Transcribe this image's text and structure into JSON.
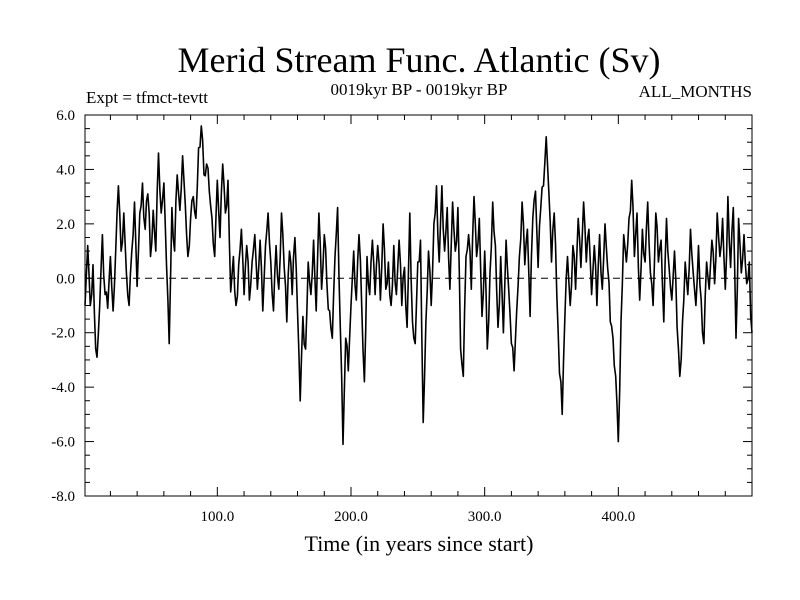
{
  "chart_data": {
    "type": "line",
    "title": "Merid Stream Func. Atlantic (Sv)",
    "experiment": "Expt = tfmct-tevtt",
    "period": "0019kyr BP - 0019kyr BP",
    "months": "ALL_MONTHS",
    "xlabel": "Time (in years since start)",
    "ylabel": "",
    "xlim": [
      1,
      500
    ],
    "ylim": [
      -8.0,
      6.0
    ],
    "xticks": [
      100,
      200,
      300,
      400
    ],
    "xtick_labels": [
      "100.0",
      "200.0",
      "300.0",
      "400.0"
    ],
    "yticks": [
      -8,
      -6,
      -4,
      -2,
      0,
      2,
      4,
      6
    ],
    "ytick_labels": [
      "-8.0",
      "-6.0",
      "-4.0",
      "-2.0",
      "0.0",
      "2.0",
      "4.0",
      "6.0"
    ],
    "zero_line": true,
    "grid": false,
    "series_color": "#000000",
    "series": [
      {
        "name": "Merid Stream Func. Atlantic",
        "x": [
          1,
          500
        ],
        "anchors": [
          [
            1,
            -1.0
          ],
          [
            3,
            1.2
          ],
          [
            5,
            -1.0
          ],
          [
            7,
            0.5
          ],
          [
            9,
            -2.6
          ],
          [
            10,
            -2.9
          ],
          [
            12,
            -1.0
          ],
          [
            14,
            1.6
          ],
          [
            16,
            -0.6
          ],
          [
            18,
            -1.1
          ],
          [
            20,
            0.8
          ],
          [
            22,
            -1.2
          ],
          [
            24,
            1.0
          ],
          [
            26,
            3.4
          ],
          [
            28,
            1.0
          ],
          [
            30,
            2.4
          ],
          [
            32,
            0.2
          ],
          [
            34,
            -1.0
          ],
          [
            36,
            1.0
          ],
          [
            38,
            2.8
          ],
          [
            40,
            -0.3
          ],
          [
            42,
            2.4
          ],
          [
            44,
            3.5
          ],
          [
            46,
            1.8
          ],
          [
            48,
            3.1
          ],
          [
            50,
            0.8
          ],
          [
            52,
            2.5
          ],
          [
            54,
            1.0
          ],
          [
            56,
            4.6
          ],
          [
            58,
            2.4
          ],
          [
            60,
            3.5
          ],
          [
            62,
            0.5
          ],
          [
            64,
            -2.4
          ],
          [
            66,
            2.6
          ],
          [
            68,
            1.0
          ],
          [
            70,
            3.8
          ],
          [
            72,
            2.5
          ],
          [
            74,
            4.5
          ],
          [
            76,
            2.7
          ],
          [
            78,
            0.8
          ],
          [
            80,
            2.2
          ],
          [
            82,
            3.0
          ],
          [
            84,
            2.2
          ],
          [
            86,
            4.8
          ],
          [
            88,
            5.6
          ],
          [
            90,
            3.8
          ],
          [
            92,
            4.2
          ],
          [
            94,
            3.2
          ],
          [
            96,
            2.2
          ],
          [
            98,
            0.8
          ],
          [
            100,
            3.6
          ],
          [
            102,
            1.5
          ],
          [
            104,
            4.2
          ],
          [
            106,
            2.4
          ],
          [
            108,
            3.6
          ],
          [
            110,
            -0.5
          ],
          [
            112,
            0.8
          ],
          [
            114,
            -1.0
          ],
          [
            116,
            0.5
          ],
          [
            118,
            1.8
          ],
          [
            120,
            -0.6
          ],
          [
            122,
            1.2
          ],
          [
            124,
            -0.8
          ],
          [
            126,
            0.6
          ],
          [
            128,
            1.6
          ],
          [
            130,
            -0.4
          ],
          [
            132,
            1.4
          ],
          [
            134,
            -1.2
          ],
          [
            136,
            1.2
          ],
          [
            138,
            2.4
          ],
          [
            140,
            0.6
          ],
          [
            142,
            -1.2
          ],
          [
            144,
            1.2
          ],
          [
            146,
            -0.4
          ],
          [
            148,
            2.4
          ],
          [
            150,
            0.4
          ],
          [
            152,
            -1.6
          ],
          [
            154,
            1.0
          ],
          [
            156,
            -0.6
          ],
          [
            158,
            1.5
          ],
          [
            160,
            -1.2
          ],
          [
            162,
            -4.5
          ],
          [
            164,
            -1.4
          ],
          [
            166,
            -2.6
          ],
          [
            168,
            0.6
          ],
          [
            170,
            -0.6
          ],
          [
            172,
            1.4
          ],
          [
            174,
            -1.2
          ],
          [
            176,
            2.4
          ],
          [
            178,
            -0.4
          ],
          [
            180,
            1.6
          ],
          [
            182,
            -0.2
          ],
          [
            184,
            -1.2
          ],
          [
            186,
            -2.2
          ],
          [
            188,
            0.8
          ],
          [
            190,
            2.6
          ],
          [
            192,
            -1.8
          ],
          [
            194,
            -6.1
          ],
          [
            196,
            -2.2
          ],
          [
            198,
            -3.4
          ],
          [
            200,
            -1.0
          ],
          [
            202,
            1.0
          ],
          [
            204,
            -0.8
          ],
          [
            206,
            1.6
          ],
          [
            208,
            -1.0
          ],
          [
            210,
            -3.8
          ],
          [
            212,
            0.8
          ],
          [
            214,
            -0.6
          ],
          [
            216,
            1.4
          ],
          [
            218,
            -0.6
          ],
          [
            220,
            1.2
          ],
          [
            222,
            -0.8
          ],
          [
            224,
            2.0
          ],
          [
            226,
            -0.4
          ],
          [
            228,
            0.6
          ],
          [
            230,
            -1.0
          ],
          [
            232,
            1.2
          ],
          [
            234,
            -0.6
          ],
          [
            236,
            1.4
          ],
          [
            238,
            -1.0
          ],
          [
            240,
            0.4
          ],
          [
            242,
            -1.8
          ],
          [
            244,
            2.4
          ],
          [
            246,
            -1.6
          ],
          [
            248,
            -2.4
          ],
          [
            250,
            0.6
          ],
          [
            252,
            1.4
          ],
          [
            254,
            -5.3
          ],
          [
            256,
            -1.6
          ],
          [
            258,
            1.0
          ],
          [
            260,
            -1.0
          ],
          [
            262,
            2.0
          ],
          [
            264,
            3.4
          ],
          [
            266,
            0.6
          ],
          [
            268,
            3.4
          ],
          [
            270,
            1.0
          ],
          [
            272,
            2.6
          ],
          [
            274,
            -0.4
          ],
          [
            276,
            2.8
          ],
          [
            278,
            1.0
          ],
          [
            280,
            2.6
          ],
          [
            282,
            -2.6
          ],
          [
            284,
            -3.6
          ],
          [
            286,
            0.8
          ],
          [
            288,
            1.6
          ],
          [
            290,
            -0.4
          ],
          [
            292,
            3.0
          ],
          [
            294,
            0.8
          ],
          [
            296,
            2.2
          ],
          [
            298,
            -1.4
          ],
          [
            300,
            1.0
          ],
          [
            302,
            -2.6
          ],
          [
            304,
            0.2
          ],
          [
            306,
            2.8
          ],
          [
            308,
            1.2
          ],
          [
            310,
            -1.8
          ],
          [
            312,
            0.8
          ],
          [
            314,
            -2.0
          ],
          [
            316,
            1.4
          ],
          [
            318,
            -0.4
          ],
          [
            320,
            -2.4
          ],
          [
            322,
            -3.4
          ],
          [
            324,
            -1.2
          ],
          [
            326,
            0.8
          ],
          [
            328,
            2.8
          ],
          [
            330,
            0.5
          ],
          [
            332,
            1.8
          ],
          [
            334,
            -1.4
          ],
          [
            336,
            2.2
          ],
          [
            338,
            3.2
          ],
          [
            340,
            0.4
          ],
          [
            342,
            2.6
          ],
          [
            344,
            3.4
          ],
          [
            346,
            5.2
          ],
          [
            348,
            3.2
          ],
          [
            350,
            0.6
          ],
          [
            352,
            2.4
          ],
          [
            354,
            -0.6
          ],
          [
            356,
            -3.5
          ],
          [
            358,
            -5.0
          ],
          [
            360,
            -1.4
          ],
          [
            362,
            0.8
          ],
          [
            364,
            -1.0
          ],
          [
            366,
            1.2
          ],
          [
            368,
            -0.4
          ],
          [
            370,
            2.2
          ],
          [
            372,
            0.4
          ],
          [
            374,
            2.8
          ],
          [
            376,
            0.6
          ],
          [
            378,
            1.8
          ],
          [
            380,
            -0.6
          ],
          [
            382,
            1.2
          ],
          [
            384,
            -1.0
          ],
          [
            386,
            1.6
          ],
          [
            388,
            -0.4
          ],
          [
            390,
            2.0
          ],
          [
            392,
            0.4
          ],
          [
            394,
            -1.6
          ],
          [
            396,
            -2.2
          ],
          [
            398,
            -3.6
          ],
          [
            400,
            -6.0
          ],
          [
            402,
            -1.6
          ],
          [
            404,
            1.6
          ],
          [
            406,
            0.6
          ],
          [
            408,
            2.2
          ],
          [
            410,
            3.6
          ],
          [
            412,
            0.8
          ],
          [
            414,
            2.4
          ],
          [
            416,
            -0.8
          ],
          [
            418,
            1.8
          ],
          [
            420,
            0.6
          ],
          [
            422,
            2.8
          ],
          [
            424,
            0.2
          ],
          [
            426,
            -1.0
          ],
          [
            428,
            2.4
          ],
          [
            430,
            0.6
          ],
          [
            432,
            1.4
          ],
          [
            434,
            -1.6
          ],
          [
            436,
            2.2
          ],
          [
            438,
            0.4
          ],
          [
            440,
            -0.8
          ],
          [
            442,
            1.0
          ],
          [
            444,
            -1.8
          ],
          [
            446,
            -3.6
          ],
          [
            448,
            -1.6
          ],
          [
            450,
            0.6
          ],
          [
            452,
            -0.6
          ],
          [
            454,
            1.8
          ],
          [
            456,
            0.2
          ],
          [
            458,
            -1.0
          ],
          [
            460,
            1.2
          ],
          [
            462,
            -0.8
          ],
          [
            464,
            -2.4
          ],
          [
            466,
            0.6
          ],
          [
            468,
            -0.4
          ],
          [
            470,
            1.4
          ],
          [
            472,
            -0.2
          ],
          [
            474,
            2.4
          ],
          [
            476,
            0.8
          ],
          [
            478,
            2.2
          ],
          [
            480,
            -0.4
          ],
          [
            482,
            3.0
          ],
          [
            484,
            0.4
          ],
          [
            486,
            2.6
          ],
          [
            488,
            -2.2
          ],
          [
            490,
            2.2
          ],
          [
            492,
            0.2
          ],
          [
            494,
            1.6
          ],
          [
            496,
            -0.2
          ],
          [
            498,
            0.6
          ],
          [
            499,
            -1.4
          ],
          [
            500,
            -2.0
          ]
        ]
      }
    ]
  }
}
